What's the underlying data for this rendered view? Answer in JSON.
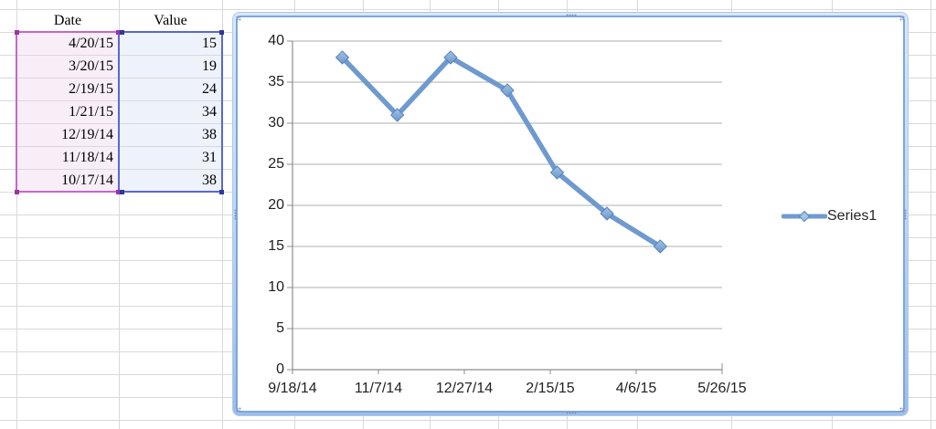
{
  "table": {
    "columns": [
      "Date",
      "Value"
    ],
    "rows": [
      {
        "date": "4/20/15",
        "value": "15"
      },
      {
        "date": "3/20/15",
        "value": "19"
      },
      {
        "date": "2/19/15",
        "value": "24"
      },
      {
        "date": "1/21/15",
        "value": "34"
      },
      {
        "date": "12/19/14",
        "value": "38"
      },
      {
        "date": "11/18/14",
        "value": "31"
      },
      {
        "date": "10/17/14",
        "value": "38"
      }
    ]
  },
  "chart_data": {
    "type": "line",
    "title": "",
    "series": [
      {
        "name": "Series1",
        "points": [
          {
            "x": "10/17/14",
            "y": 38
          },
          {
            "x": "11/18/14",
            "y": 31
          },
          {
            "x": "12/19/14",
            "y": 38
          },
          {
            "x": "1/21/15",
            "y": 34
          },
          {
            "x": "2/19/15",
            "y": 24
          },
          {
            "x": "3/20/15",
            "y": 19
          },
          {
            "x": "4/20/15",
            "y": 15
          }
        ]
      }
    ],
    "x_axis": {
      "type": "date",
      "min": "9/18/14",
      "max": "5/26/15",
      "tick_labels": [
        "9/18/14",
        "11/7/14",
        "12/27/14",
        "2/15/15",
        "4/6/15",
        "5/26/15"
      ]
    },
    "y_axis": {
      "min": 0,
      "max": 40,
      "step": 5,
      "tick_labels": [
        "0",
        "5",
        "10",
        "15",
        "20",
        "25",
        "30",
        "35",
        "40"
      ]
    },
    "legend_position": "right",
    "grid": "horizontal",
    "marker": "diamond"
  },
  "colors": {
    "series_line": "#6E9ACF",
    "marker_fill_top": "#A3C2E6",
    "marker_fill_bottom": "#6B97C9",
    "marker_stroke": "#5584BC",
    "gridline": "#AFAFAF",
    "axis": "#8C8C8C",
    "chart_text": "#1F1F1F",
    "date_range_border": "#C767C7",
    "value_range_border": "#5B66D2",
    "sheet_gridline": "#D9D9D9"
  }
}
